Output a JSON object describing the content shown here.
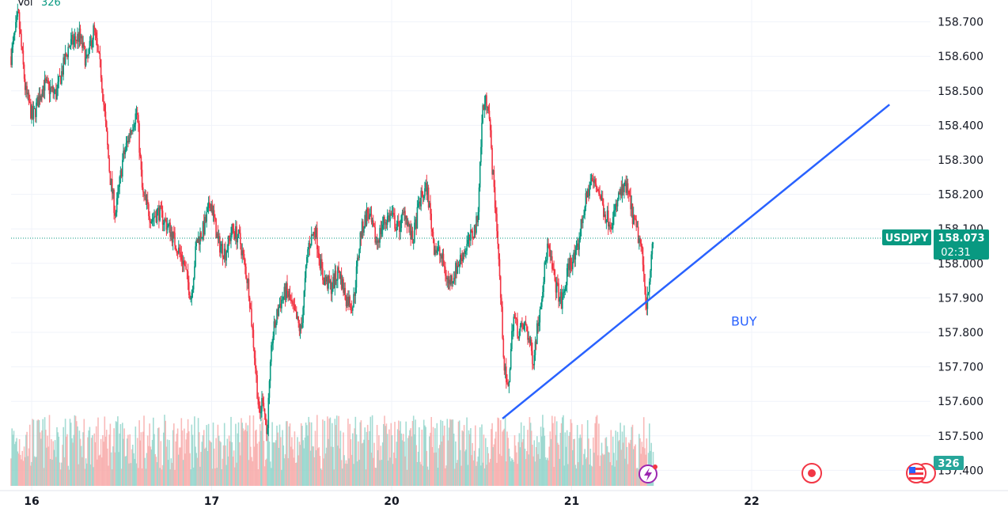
{
  "chart_data": {
    "type": "candlestick",
    "symbol": "USDJPY",
    "last_price": "158.073",
    "countdown": "02:31",
    "volume_label": "Vol",
    "volume_value": "326",
    "volume_tag": "326",
    "y_ticks": [
      "158.700",
      "158.600",
      "158.500",
      "158.400",
      "158.300",
      "158.200",
      "158.100",
      "158.000",
      "157.900",
      "157.800",
      "157.700",
      "157.600",
      "157.500",
      "157.400"
    ],
    "ylim": [
      157.4,
      158.7
    ],
    "x_ticks": [
      {
        "label": "16",
        "t": 0
      },
      {
        "label": "17",
        "t": 1
      },
      {
        "label": "20",
        "t": 2
      },
      {
        "label": "21",
        "t": 3
      },
      {
        "label": "22",
        "t": 4
      }
    ],
    "price_path": [
      [
        0.0,
        158.6
      ],
      [
        0.04,
        158.72
      ],
      [
        0.08,
        158.5
      ],
      [
        0.12,
        158.42
      ],
      [
        0.18,
        158.52
      ],
      [
        0.25,
        158.49
      ],
      [
        0.32,
        158.63
      ],
      [
        0.38,
        158.66
      ],
      [
        0.42,
        158.58
      ],
      [
        0.46,
        158.68
      ],
      [
        0.5,
        158.55
      ],
      [
        0.55,
        158.25
      ],
      [
        0.58,
        158.14
      ],
      [
        0.62,
        158.3
      ],
      [
        0.67,
        158.4
      ],
      [
        0.7,
        158.44
      ],
      [
        0.73,
        158.2
      ],
      [
        0.78,
        158.13
      ],
      [
        0.82,
        158.15
      ],
      [
        0.88,
        158.1
      ],
      [
        0.92,
        158.05
      ],
      [
        0.96,
        158.0
      ],
      [
        1.0,
        157.9
      ],
      [
        1.03,
        158.06
      ],
      [
        1.07,
        158.1
      ],
      [
        1.11,
        158.18
      ],
      [
        1.15,
        158.06
      ],
      [
        1.19,
        158.03
      ],
      [
        1.23,
        158.1
      ],
      [
        1.27,
        158.07
      ],
      [
        1.32,
        157.93
      ],
      [
        1.35,
        157.75
      ],
      [
        1.38,
        157.55
      ],
      [
        1.4,
        157.62
      ],
      [
        1.42,
        157.5
      ],
      [
        1.45,
        157.78
      ],
      [
        1.49,
        157.88
      ],
      [
        1.53,
        157.92
      ],
      [
        1.57,
        157.86
      ],
      [
        1.61,
        157.8
      ],
      [
        1.65,
        158.05
      ],
      [
        1.69,
        158.1
      ],
      [
        1.73,
        157.96
      ],
      [
        1.78,
        157.93
      ],
      [
        1.82,
        157.98
      ],
      [
        1.86,
        157.9
      ],
      [
        1.9,
        157.88
      ],
      [
        1.94,
        158.08
      ],
      [
        1.98,
        158.15
      ],
      [
        2.03,
        158.06
      ],
      [
        2.07,
        158.12
      ],
      [
        2.11,
        158.14
      ],
      [
        2.15,
        158.1
      ],
      [
        2.19,
        158.15
      ],
      [
        2.23,
        158.06
      ],
      [
        2.27,
        158.18
      ],
      [
        2.31,
        158.22
      ],
      [
        2.35,
        158.05
      ],
      [
        2.39,
        158.02
      ],
      [
        2.43,
        157.94
      ],
      [
        2.47,
        157.98
      ],
      [
        2.51,
        158.03
      ],
      [
        2.56,
        158.08
      ],
      [
        2.59,
        158.12
      ],
      [
        2.62,
        158.45
      ],
      [
        2.65,
        158.48
      ],
      [
        2.67,
        158.3
      ],
      [
        2.7,
        158.1
      ],
      [
        2.72,
        157.9
      ],
      [
        2.74,
        157.7
      ],
      [
        2.76,
        157.62
      ],
      [
        2.79,
        157.85
      ],
      [
        2.82,
        157.8
      ],
      [
        2.86,
        157.82
      ],
      [
        2.9,
        157.72
      ],
      [
        2.94,
        157.88
      ],
      [
        2.98,
        158.05
      ],
      [
        3.02,
        157.95
      ],
      [
        3.06,
        157.88
      ],
      [
        3.1,
        158.0
      ],
      [
        3.14,
        158.02
      ],
      [
        3.18,
        158.15
      ],
      [
        3.22,
        158.24
      ],
      [
        3.26,
        158.22
      ],
      [
        3.3,
        158.14
      ],
      [
        3.34,
        158.12
      ],
      [
        3.38,
        158.2
      ],
      [
        3.42,
        158.22
      ],
      [
        3.46,
        158.12
      ],
      [
        3.5,
        158.05
      ],
      [
        3.53,
        157.88
      ],
      [
        3.55,
        157.98
      ],
      [
        3.57,
        158.07
      ]
    ]
  },
  "annotation": {
    "label": "BUY",
    "trendline": {
      "start": [
        2.73,
        157.55
      ],
      "end": [
        4.88,
        158.46
      ]
    },
    "buy_label_at": [
      4.0,
      157.82
    ],
    "color": "#2962ff"
  },
  "colors": {
    "up": "#089981",
    "down": "#f23645",
    "grid": "#f0f3fa",
    "tag_bg": "#089981",
    "text": "#131722",
    "event_red": "#f23645",
    "event_purple": "#9c27b0"
  },
  "icons": [
    "lightning-event-icon",
    "record-event-icon",
    "us-flag-event-icon"
  ]
}
